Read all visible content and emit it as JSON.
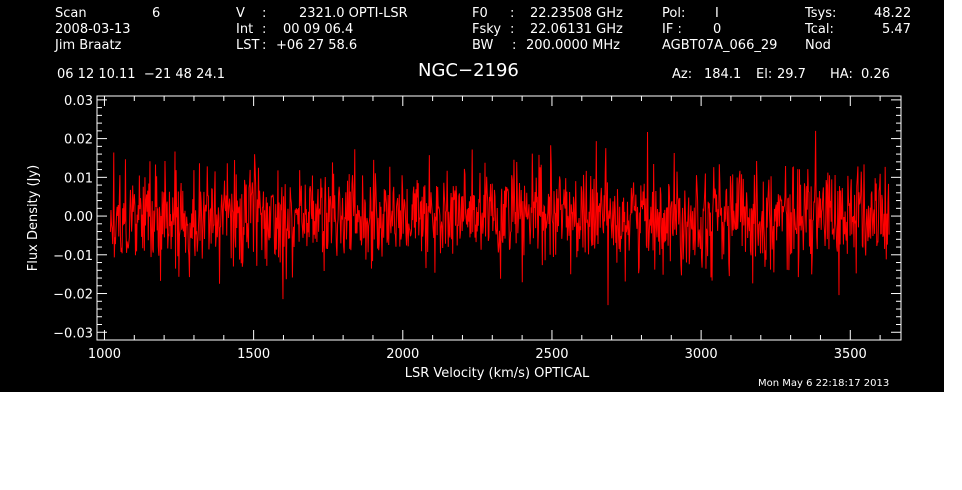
{
  "header": {
    "scan_label": "Scan",
    "scan_value": "6",
    "date": "2008-03-13",
    "observer": "Jim Braatz",
    "v_label": "V",
    "v_value": "2321.0 OPTI-LSR",
    "int_label": "Int",
    "int_value": "00 09 06.4",
    "lst_label": "LST",
    "lst_value": "+06 27 58.6",
    "f0_label": "F0",
    "f0_value": "22.23508 GHz",
    "fsky_label": "Fsky",
    "fsky_value": "22.06131 GHz",
    "bw_label": "BW",
    "bw_value": "200.0000 MHz",
    "pol_label": "Pol:",
    "pol_value": "I",
    "if_label": "IF :",
    "if_value": "0",
    "project": "AGBT07A_066_29",
    "tsys_label": "Tsys:",
    "tsys_value": "48.22",
    "tcal_label": "Tcal:",
    "tcal_value": "5.47",
    "mode": "Nod",
    "coords": "06 12 10.11  −21 48 24.1",
    "az_label": "Az:",
    "az_value": "184.1",
    "el_label": "El:",
    "el_value": "29.7",
    "ha_label": "HA:",
    "ha_value": "0.26"
  },
  "title": "NGC−2196",
  "timestamp": "Mon May  6 22:18:17 2013",
  "colors": {
    "background": "#000000",
    "axes": "#ffffff",
    "series": "#ff0000"
  },
  "chart_data": {
    "type": "line",
    "title": "NGC−2196",
    "xlabel": "LSR Velocity (km/s) OPTICAL",
    "ylabel": "Flux Density (Jy)",
    "xlim": [
      975,
      3670
    ],
    "ylim": [
      -0.032,
      0.031
    ],
    "xticks": [
      1000,
      1500,
      2000,
      2500,
      3000,
      3500
    ],
    "xtick_labels": [
      "1000",
      "1500",
      "2000",
      "2500",
      "3000",
      "3500"
    ],
    "yticks": [
      -0.03,
      -0.02,
      -0.01,
      0.0,
      0.01,
      0.02,
      0.03
    ],
    "ytick_labels": [
      "−0.03",
      "−0.02",
      "−0.01",
      "0.00",
      "0.01",
      "0.02",
      "0.03"
    ],
    "grid": false,
    "legend": "none",
    "series": [
      {
        "x_range": [
          1020,
          3630
        ],
        "points": 1400,
        "mean": 0.0,
        "rms": 0.0065,
        "min": -0.023,
        "max": 0.022
      }
    ]
  }
}
